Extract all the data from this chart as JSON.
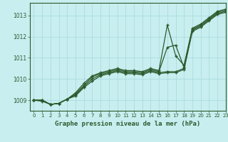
{
  "background_color": "#c8eef0",
  "plot_bg_color": "#c8eef0",
  "grid_color": "#aadddd",
  "line_color": "#2d5a2d",
  "title": "Graphe pression niveau de la mer (hPa)",
  "xlim": [
    -0.5,
    23
  ],
  "ylim": [
    1008.5,
    1013.6
  ],
  "yticks": [
    1009,
    1010,
    1011,
    1012,
    1013
  ],
  "xticks": [
    0,
    1,
    2,
    3,
    4,
    5,
    6,
    7,
    8,
    9,
    10,
    11,
    12,
    13,
    14,
    15,
    16,
    17,
    18,
    19,
    20,
    21,
    22,
    23
  ],
  "series": [
    [
      1009.0,
      1009.0,
      1008.8,
      1008.85,
      1009.05,
      1009.2,
      1009.6,
      1009.9,
      1010.15,
      1010.25,
      1010.35,
      1010.25,
      1010.25,
      1010.2,
      1010.35,
      1010.25,
      1010.3,
      1010.3,
      1010.45,
      1012.25,
      1012.45,
      1012.75,
      1013.05,
      1013.15
    ],
    [
      1009.0,
      1009.0,
      1008.8,
      1008.85,
      1009.05,
      1009.25,
      1009.65,
      1010.0,
      1010.2,
      1010.3,
      1010.4,
      1010.3,
      1010.3,
      1010.25,
      1010.4,
      1010.3,
      1010.35,
      1010.35,
      1010.5,
      1012.3,
      1012.5,
      1012.8,
      1013.1,
      1013.2
    ],
    [
      1009.0,
      1009.0,
      1008.8,
      1008.85,
      1009.05,
      1009.3,
      1009.7,
      1010.1,
      1010.25,
      1010.35,
      1010.45,
      1010.35,
      1010.35,
      1010.3,
      1010.45,
      1010.35,
      1011.5,
      1011.6,
      1010.55,
      1012.35,
      1012.55,
      1012.85,
      1013.15,
      1013.25
    ],
    [
      1009.0,
      1008.95,
      1008.8,
      1008.85,
      1009.05,
      1009.35,
      1009.8,
      1010.15,
      1010.3,
      1010.4,
      1010.5,
      1010.4,
      1010.4,
      1010.35,
      1010.5,
      1010.4,
      1012.55,
      1011.1,
      1010.65,
      1012.4,
      1012.6,
      1012.9,
      1013.2,
      1013.3
    ]
  ]
}
